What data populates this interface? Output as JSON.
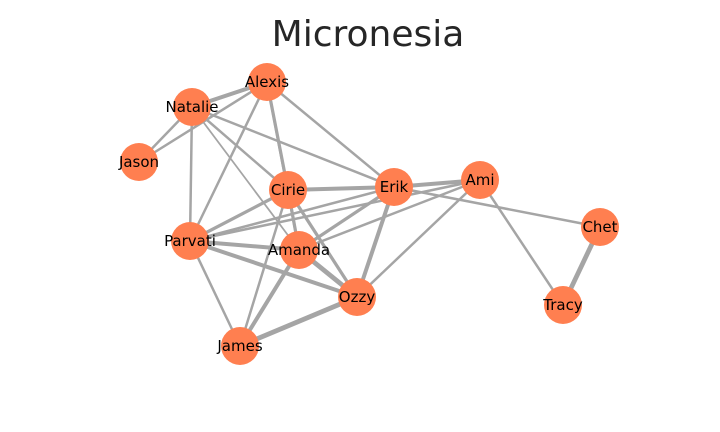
{
  "title": "Micronesia",
  "colors": {
    "node_fill": "#ff7f50",
    "edge_stroke": "#a5a5a5",
    "label_text": "#000000",
    "title_text": "#262626",
    "background": "#ffffff"
  },
  "graph": {
    "nodes": [
      {
        "id": "Alexis",
        "label": "Alexis"
      },
      {
        "id": "Natalie",
        "label": "Natalie"
      },
      {
        "id": "Jason",
        "label": "Jason"
      },
      {
        "id": "Cirie",
        "label": "Cirie"
      },
      {
        "id": "Erik",
        "label": "Erik"
      },
      {
        "id": "Ami",
        "label": "Ami"
      },
      {
        "id": "Chet",
        "label": "Chet"
      },
      {
        "id": "Parvati",
        "label": "Parvati"
      },
      {
        "id": "Amanda",
        "label": "Amanda"
      },
      {
        "id": "Ozzy",
        "label": "Ozzy"
      },
      {
        "id": "Tracy",
        "label": "Tracy"
      },
      {
        "id": "James",
        "label": "James"
      }
    ],
    "edges": [
      {
        "source": "Natalie",
        "target": "Alexis",
        "weight": 4
      },
      {
        "source": "Natalie",
        "target": "Jason",
        "weight": 2
      },
      {
        "source": "Alexis",
        "target": "Jason",
        "weight": 2
      },
      {
        "source": "Natalie",
        "target": "Cirie",
        "weight": 2
      },
      {
        "source": "Natalie",
        "target": "Erik",
        "weight": 2
      },
      {
        "source": "Natalie",
        "target": "Parvati",
        "weight": 2
      },
      {
        "source": "Natalie",
        "target": "Amanda",
        "weight": 1
      },
      {
        "source": "Alexis",
        "target": "Cirie",
        "weight": 3
      },
      {
        "source": "Alexis",
        "target": "Erik",
        "weight": 2
      },
      {
        "source": "Alexis",
        "target": "Parvati",
        "weight": 2
      },
      {
        "source": "Alexis",
        "target": "Amanda",
        "weight": 2
      },
      {
        "source": "Cirie",
        "target": "Erik",
        "weight": 4
      },
      {
        "source": "Cirie",
        "target": "Parvati",
        "weight": 3
      },
      {
        "source": "Cirie",
        "target": "Amanda",
        "weight": 3
      },
      {
        "source": "Cirie",
        "target": "Ozzy",
        "weight": 3
      },
      {
        "source": "Cirie",
        "target": "James",
        "weight": 2
      },
      {
        "source": "Erik",
        "target": "Ami",
        "weight": 4
      },
      {
        "source": "Erik",
        "target": "Parvati",
        "weight": 2
      },
      {
        "source": "Erik",
        "target": "Amanda",
        "weight": 3
      },
      {
        "source": "Erik",
        "target": "Ozzy",
        "weight": 4
      },
      {
        "source": "Erik",
        "target": "Chet",
        "weight": 2
      },
      {
        "source": "Ami",
        "target": "Amanda",
        "weight": 2
      },
      {
        "source": "Ami",
        "target": "Ozzy",
        "weight": 2
      },
      {
        "source": "Ami",
        "target": "Parvati",
        "weight": 2
      },
      {
        "source": "Ami",
        "target": "Tracy",
        "weight": 2
      },
      {
        "source": "Chet",
        "target": "Tracy",
        "weight": 5
      },
      {
        "source": "Parvati",
        "target": "Amanda",
        "weight": 4
      },
      {
        "source": "Parvati",
        "target": "Ozzy",
        "weight": 4
      },
      {
        "source": "Parvati",
        "target": "James",
        "weight": 2
      },
      {
        "source": "Amanda",
        "target": "Ozzy",
        "weight": 5
      },
      {
        "source": "Amanda",
        "target": "James",
        "weight": 4
      },
      {
        "source": "Ozzy",
        "target": "James",
        "weight": 5
      }
    ]
  }
}
